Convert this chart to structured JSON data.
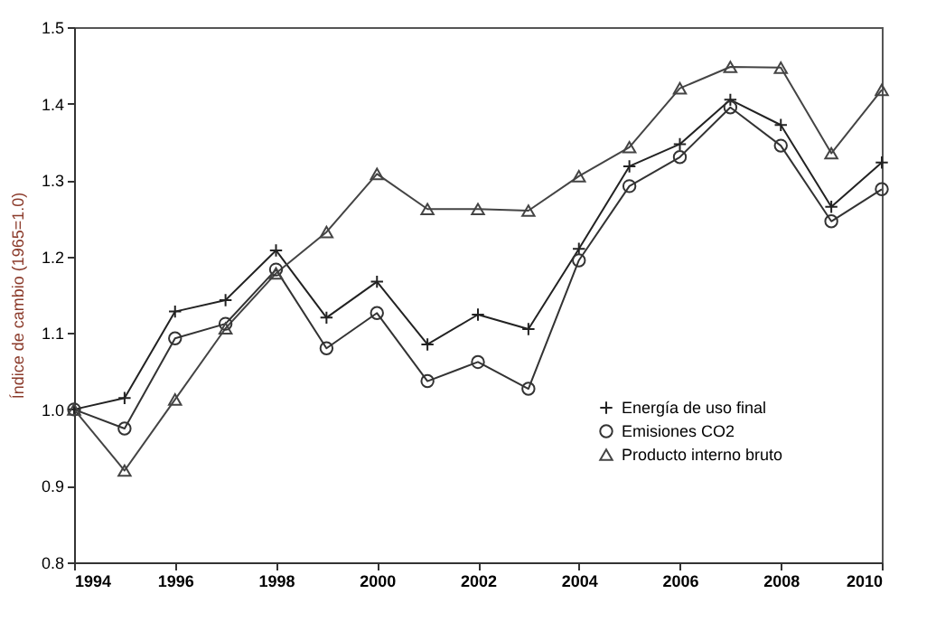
{
  "chart_data": {
    "type": "line",
    "ylabel": "Índice de cambio (1965=1.0)",
    "x": [
      1994,
      1995,
      1996,
      1997,
      1998,
      1999,
      2000,
      2001,
      2002,
      2003,
      2004,
      2005,
      2006,
      2007,
      2008,
      2009,
      2010
    ],
    "series": [
      {
        "name": "Energía de uso final",
        "color": "#222222",
        "marker": "cross",
        "values": [
          1.0,
          1.015,
          1.128,
          1.143,
          1.208,
          1.12,
          1.167,
          1.085,
          1.124,
          1.105,
          1.21,
          1.318,
          1.347,
          1.405,
          1.372,
          1.265,
          1.323
        ]
      },
      {
        "name": "Emisiones CO2",
        "color": "#333333",
        "marker": "circle",
        "values": [
          1.0,
          0.975,
          1.093,
          1.112,
          1.183,
          1.08,
          1.126,
          1.037,
          1.062,
          1.027,
          1.195,
          1.292,
          1.33,
          1.395,
          1.345,
          1.246,
          1.288
        ]
      },
      {
        "name": "Producto interno bruto",
        "color": "#444444",
        "marker": "triangle",
        "values": [
          1.0,
          0.92,
          1.013,
          1.106,
          1.178,
          1.232,
          1.308,
          1.262,
          1.262,
          1.26,
          1.305,
          1.343,
          1.42,
          1.448,
          1.447,
          1.335,
          1.418
        ]
      }
    ],
    "xlim": [
      1994,
      2010
    ],
    "xticks": [
      1994,
      1996,
      1998,
      2000,
      2002,
      2004,
      2006,
      2008,
      2010
    ],
    "ylim": [
      0.8,
      1.5
    ],
    "yticks": [
      0.8,
      0.9,
      {
        "value": 1,
        "label": "1.0"
      },
      1.1,
      1.2,
      1.3,
      1.4,
      1.5
    ],
    "grid": false,
    "legend": "bottom right"
  }
}
